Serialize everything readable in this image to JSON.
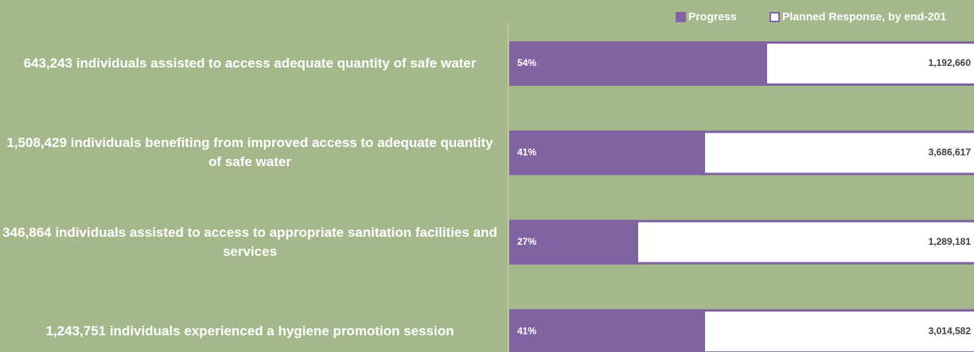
{
  "chart_data": {
    "type": "bar",
    "categories": [
      "643,243 individuals assisted to access adequate quantity of safe water",
      "1,508,429 individuals benefiting from improved access to adequate quantity of safe water",
      "346,864 individuals assisted to access to appropriate sanitation facilities and services",
      "1,243,751 individuals experienced a hygiene promotion session"
    ],
    "series": [
      {
        "name": "Progress",
        "color": "#8064a2",
        "values": [
          54,
          41,
          27,
          41
        ],
        "value_labels": [
          "54%",
          "41%",
          "27%",
          "41%"
        ]
      },
      {
        "name": "Planned Response, by end-201",
        "color": "#ffffff",
        "values": [
          1192660,
          3686617,
          1289181,
          3014582
        ],
        "value_labels": [
          "1,192,660",
          "3,686,617",
          "1,289,181",
          "3,014,582"
        ]
      }
    ],
    "xlim": [
      0,
      100
    ]
  }
}
